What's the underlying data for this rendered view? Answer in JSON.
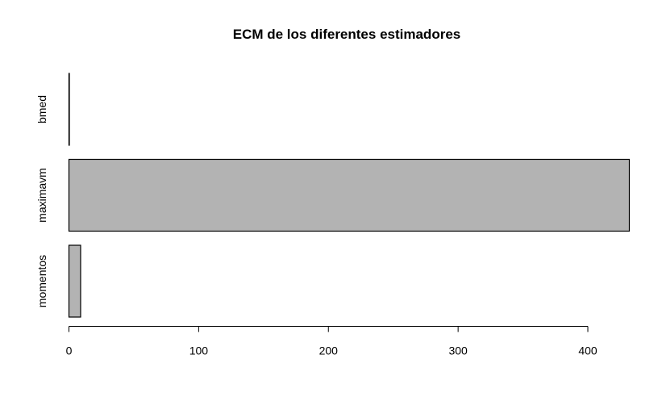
{
  "chart_data": {
    "type": "bar",
    "orientation": "horizontal",
    "title": "ECM de los diferentes estimadores",
    "xlabel": "",
    "ylabel": "",
    "categories": [
      "bmed",
      "maximavm",
      "momentos"
    ],
    "values": [
      0.1,
      432,
      9
    ],
    "xlim": [
      0,
      432
    ],
    "xticks": [
      0,
      100,
      200,
      300,
      400
    ],
    "grid": false,
    "legend": "none",
    "bar_color": "#b3b3b3",
    "bar_border_color": "#000000"
  }
}
